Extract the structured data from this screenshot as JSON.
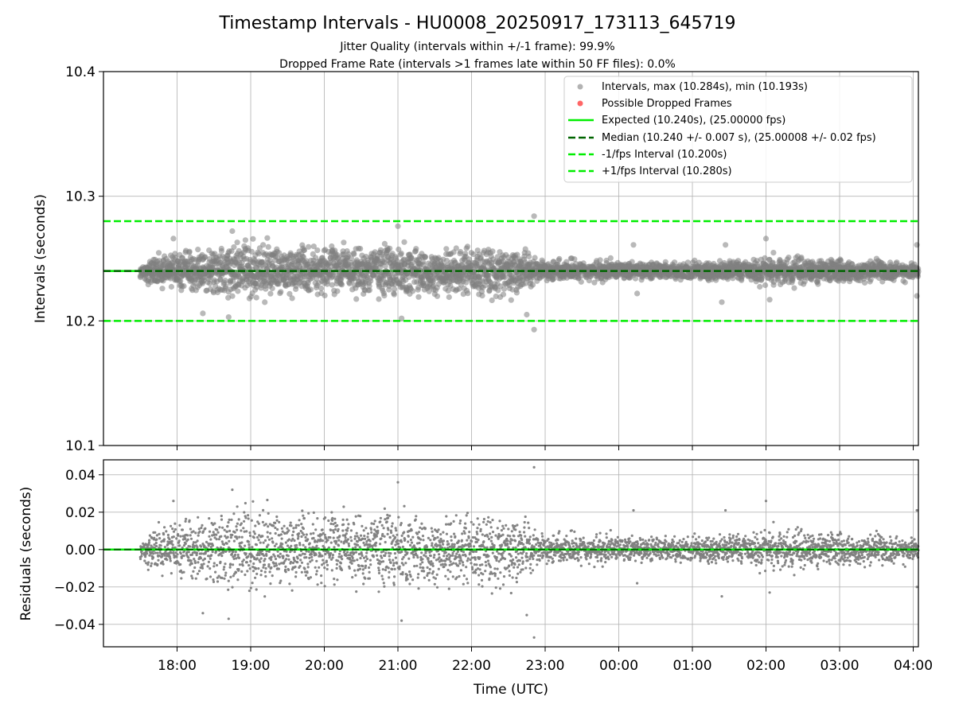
{
  "figure": {
    "title": "Timestamp Intervals - HU0008_20250917_173113_645719",
    "subtitle_1": "Jitter Quality (intervals within +/-1 frame): 99.9%",
    "subtitle_2": "Dropped Frame Rate (intervals >1 frames late within 50 FF files): 0.0%"
  },
  "chart_data": [
    {
      "type": "scatter",
      "panel": "intervals",
      "xlabel": "",
      "ylabel": "Intervals (seconds)",
      "ylim": [
        10.1,
        10.4
      ],
      "yticks": [
        10.1,
        10.2,
        10.3,
        10.4
      ],
      "ytick_labels": [
        "10.1",
        "10.2",
        "10.3",
        "10.4"
      ],
      "xlim_hours": [
        17.0,
        28.07
      ],
      "xticks_hours": [
        18,
        19,
        20,
        21,
        22,
        23,
        24,
        25,
        26,
        27,
        28
      ],
      "grid": true,
      "legend_position": "top-right",
      "legend": [
        {
          "kind": "marker",
          "color": "#808080",
          "label": "Intervals, max (10.284s), min (10.193s)"
        },
        {
          "kind": "marker",
          "color": "#ff0000",
          "label": "Possible Dropped Frames"
        },
        {
          "kind": "solid",
          "color": "#00ee00",
          "label": "Expected (10.240s), (25.00000 fps)"
        },
        {
          "kind": "dashed",
          "color": "#006400",
          "label": "Median (10.240 +/- 0.007 s), (25.00008 +/- 0.02 fps)"
        },
        {
          "kind": "dashed",
          "color": "#00ee00",
          "label": "-1/fps Interval (10.200s)"
        },
        {
          "kind": "dashed",
          "color": "#00ee00",
          "label": "+1/fps Interval (10.280s)"
        }
      ],
      "reference_lines": {
        "expected": 10.24,
        "median": 10.24,
        "minus_one_frame": 10.2,
        "plus_one_frame": 10.28
      },
      "series": [
        {
          "name": "Intervals, max (10.284s), min (10.193s)",
          "start_hour": 17.5,
          "end_hour": 28.07,
          "max": 10.284,
          "min": 10.193,
          "count_approx": 3700,
          "spread_envelope": [
            {
              "hour": 17.5,
              "sd": 0.004
            },
            {
              "hour": 17.9,
              "sd": 0.008
            },
            {
              "hour": 18.5,
              "sd": 0.012
            },
            {
              "hour": 21.0,
              "sd": 0.012
            },
            {
              "hour": 22.6,
              "sd": 0.011
            },
            {
              "hour": 22.95,
              "sd": 0.005
            },
            {
              "hour": 24.5,
              "sd": 0.004
            },
            {
              "hour": 25.5,
              "sd": 0.004
            },
            {
              "hour": 26.0,
              "sd": 0.007
            },
            {
              "hour": 26.5,
              "sd": 0.006
            },
            {
              "hour": 28.07,
              "sd": 0.004
            }
          ],
          "notable_points": [
            {
              "hour": 22.85,
              "value": 10.284
            },
            {
              "hour": 22.85,
              "value": 10.193
            },
            {
              "hour": 22.75,
              "value": 10.205
            },
            {
              "hour": 21.0,
              "value": 10.276
            },
            {
              "hour": 21.05,
              "value": 10.202
            },
            {
              "hour": 18.75,
              "value": 10.272
            },
            {
              "hour": 18.7,
              "value": 10.203
            },
            {
              "hour": 17.95,
              "value": 10.266
            },
            {
              "hour": 18.35,
              "value": 10.206
            },
            {
              "hour": 26.0,
              "value": 10.266
            },
            {
              "hour": 26.05,
              "value": 10.217
            },
            {
              "hour": 25.45,
              "value": 10.261
            },
            {
              "hour": 25.4,
              "value": 10.215
            },
            {
              "hour": 28.05,
              "value": 10.261
            },
            {
              "hour": 28.05,
              "value": 10.22
            },
            {
              "hour": 24.2,
              "value": 10.261
            },
            {
              "hour": 24.25,
              "value": 10.222
            }
          ]
        }
      ]
    },
    {
      "type": "scatter",
      "panel": "residuals",
      "xlabel": "Time (UTC)",
      "ylabel": "Residuals (seconds)",
      "ylim": [
        -0.052,
        0.048
      ],
      "yticks": [
        -0.04,
        -0.02,
        0.0,
        0.02,
        0.04
      ],
      "ytick_labels": [
        "−0.04",
        "−0.02",
        "0.00",
        "0.02",
        "0.04"
      ],
      "xtick_labels": [
        "18:00",
        "19:00",
        "20:00",
        "21:00",
        "22:00",
        "23:00",
        "00:00",
        "01:00",
        "02:00",
        "03:00",
        "04:00"
      ],
      "grid": true,
      "reference_lines": {
        "zero_solid": 0.0,
        "zero_dashed": 0.0
      },
      "series": [
        {
          "name": "Residuals",
          "max": 0.044,
          "min": -0.047,
          "mirrors": "intervals minus 10.240"
        }
      ]
    }
  ],
  "colors": {
    "points": "#808080",
    "dropped": "#ff0000",
    "expected": "#00ee00",
    "median": "#006400",
    "grid": "#b0b0b0",
    "axes": "#000000"
  }
}
